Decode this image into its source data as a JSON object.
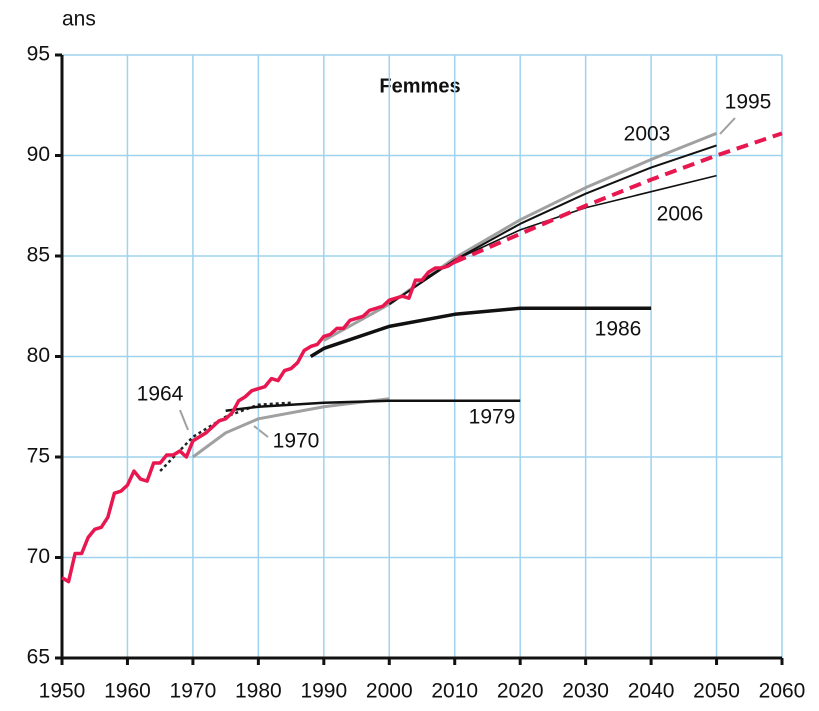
{
  "chart_data": {
    "type": "line",
    "title": "Femmes",
    "y_label": "ans",
    "xlim": [
      1950,
      2060
    ],
    "xticks": [
      1950,
      1960,
      1970,
      1980,
      1990,
      2000,
      2010,
      2020,
      2030,
      2040,
      2050,
      2060
    ],
    "ylim": [
      65,
      95
    ],
    "yticks": [
      65,
      70,
      75,
      80,
      85,
      90,
      95
    ],
    "grid": true,
    "series": [
      {
        "color": "#e8174f",
        "style": "solid",
        "x": [
          1950,
          1951,
          1952,
          1953,
          1954,
          1955,
          1956,
          1957,
          1958,
          1959,
          1960,
          1961,
          1962,
          1963,
          1964,
          1965,
          1966,
          1967,
          1968,
          1969,
          1970,
          1971,
          1972,
          1973,
          1974,
          1975,
          1976,
          1977,
          1978,
          1979,
          1980,
          1981,
          1982,
          1983,
          1984,
          1985,
          1986,
          1987,
          1988,
          1989,
          1990,
          1991,
          1992,
          1993,
          1994,
          1995,
          1996,
          1997,
          1998,
          1999,
          2000,
          2001,
          2002,
          2003,
          2004,
          2005,
          2006,
          2007,
          2008,
          2009,
          2010,
          2011
        ],
        "values": [
          69.0,
          68.8,
          70.2,
          70.2,
          71.0,
          71.4,
          71.5,
          72.0,
          73.2,
          73.3,
          73.6,
          74.3,
          73.9,
          73.8,
          74.7,
          74.7,
          75.1,
          75.1,
          75.3,
          75.0,
          75.8,
          76.0,
          76.2,
          76.5,
          76.8,
          76.9,
          77.2,
          77.8,
          78.0,
          78.3,
          78.4,
          78.5,
          78.9,
          78.8,
          79.3,
          79.4,
          79.7,
          80.3,
          80.5,
          80.6,
          81.0,
          81.1,
          81.4,
          81.4,
          81.8,
          81.9,
          82.0,
          82.3,
          82.4,
          82.5,
          82.8,
          82.9,
          83.0,
          82.9,
          83.8,
          83.8,
          84.2,
          84.4,
          84.4,
          84.5,
          84.7,
          85.0
        ]
      },
      {
        "color": "#e8174f",
        "style": "dashed",
        "x": [
          2010,
          2020,
          2030,
          2040,
          2050,
          2060
        ],
        "values": [
          84.7,
          86.1,
          87.5,
          88.8,
          90.0,
          91.1
        ]
      },
      {
        "name": "1964",
        "color": "#222222",
        "style": "dotted",
        "x": [
          1965,
          1970,
          1975,
          1980,
          1985
        ],
        "values": [
          74.3,
          76.0,
          77.0,
          77.6,
          77.7
        ]
      },
      {
        "name": "1970",
        "color": "#a0a0a0",
        "style": "solid",
        "x": [
          1970,
          1975,
          1980,
          1990,
          2000
        ],
        "values": [
          75.0,
          76.2,
          76.9,
          77.5,
          77.9
        ]
      },
      {
        "name": "1979",
        "color": "#111111",
        "style": "solid",
        "x": [
          1975,
          1980,
          1990,
          2000,
          2010,
          2020
        ],
        "values": [
          77.3,
          77.5,
          77.7,
          77.8,
          77.8,
          77.8
        ]
      },
      {
        "name": "1986",
        "color": "#111111",
        "style": "solid",
        "x": [
          1988,
          1990,
          2000,
          2010,
          2020,
          2030,
          2040
        ],
        "values": [
          80.0,
          80.4,
          81.5,
          82.1,
          82.4,
          82.4,
          82.4
        ]
      },
      {
        "name": "1995",
        "color": "#a0a0a0",
        "style": "solid",
        "x": [
          1990,
          2000,
          2010,
          2020,
          2030,
          2040,
          2050
        ],
        "values": [
          80.8,
          82.6,
          84.9,
          86.8,
          88.4,
          89.8,
          91.1
        ]
      },
      {
        "name": "2003",
        "color": "#111111",
        "style": "solid",
        "x": [
          2000,
          2010,
          2020,
          2030,
          2040,
          2050
        ],
        "values": [
          82.6,
          84.8,
          86.6,
          88.1,
          89.4,
          90.5
        ]
      },
      {
        "name": "2006",
        "color": "#111111",
        "style": "solid",
        "x": [
          2005,
          2010,
          2020,
          2030,
          2040,
          2050
        ],
        "values": [
          83.8,
          84.8,
          86.3,
          87.4,
          88.2,
          89.0
        ]
      }
    ]
  }
}
